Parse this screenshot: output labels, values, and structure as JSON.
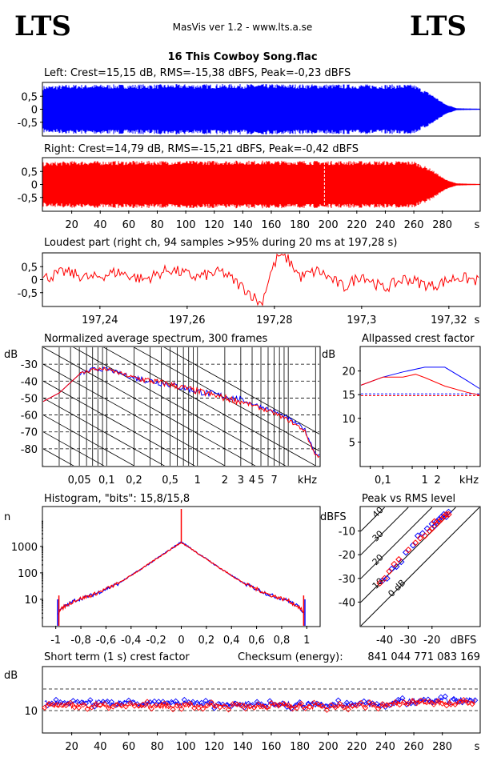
{
  "header": {
    "logo_left": "LTS",
    "logo_right": "LTS",
    "app_title": "MasVis ver 1.2 - www.lts.a.se",
    "file_name": "16 This Cowboy Song.flac"
  },
  "colors": {
    "left": "#0000ff",
    "right": "#ff0000",
    "axes": "#000000"
  },
  "chart_data": [
    {
      "id": "left-waveform",
      "type": "area",
      "title": "Left: Crest=15,15 dB, RMS=-15,38 dBFS, Peak=-0,23 dBFS",
      "ylim": [
        -1,
        1
      ],
      "yticks": [
        "0,5",
        "0",
        "-0,5"
      ],
      "xlim": [
        0,
        306
      ],
      "series": [
        {
          "envelope": [
            [
              0,
              0.9
            ],
            [
              20,
              0.95
            ],
            [
              150,
              0.97
            ],
            [
              260,
              0.95
            ],
            [
              272,
              0.6
            ],
            [
              282,
              0.2
            ],
            [
              290,
              0.04
            ],
            [
              306,
              0.02
            ]
          ]
        }
      ]
    },
    {
      "id": "right-waveform",
      "type": "area",
      "title": "Right: Crest=14,79 dB, RMS=-15,21 dBFS, Peak=-0,42 dBFS",
      "ylim": [
        -1,
        1
      ],
      "yticks": [
        "0,5",
        "0",
        "-0,5"
      ],
      "xlim": [
        0,
        306
      ],
      "xticks": [
        "20",
        "40",
        "60",
        "80",
        "100",
        "120",
        "140",
        "160",
        "180",
        "200",
        "220",
        "240",
        "260",
        "280"
      ],
      "xunit": "s",
      "marker_time": 197.28,
      "series": [
        {
          "envelope": [
            [
              0,
              0.85
            ],
            [
              20,
              0.9
            ],
            [
              150,
              0.92
            ],
            [
              260,
              0.9
            ],
            [
              272,
              0.6
            ],
            [
              282,
              0.2
            ],
            [
              290,
              0.04
            ],
            [
              306,
              0.02
            ]
          ]
        }
      ]
    },
    {
      "id": "loudest-part",
      "type": "line",
      "title": "Loudest part (right ch, 94 samples >95% during 20 ms at 197,28 s)",
      "ylim": [
        -1,
        1
      ],
      "yticks": [
        "0,5",
        "0",
        "-0,5"
      ],
      "xlim": [
        197.227,
        197.327
      ],
      "xticks": [
        "197,24",
        "197,26",
        "197,28",
        "197,3",
        "197,32"
      ],
      "xunit": "s",
      "series": [
        {
          "name": "right",
          "control_points": [
            [
              197.227,
              0.05
            ],
            [
              197.232,
              0.3
            ],
            [
              197.238,
              0.05
            ],
            [
              197.244,
              0.3
            ],
            [
              197.25,
              0.0
            ],
            [
              197.256,
              0.4
            ],
            [
              197.262,
              0.1
            ],
            [
              197.268,
              0.3
            ],
            [
              197.274,
              -0.45
            ],
            [
              197.277,
              -0.95
            ],
            [
              197.279,
              0.2
            ],
            [
              197.281,
              0.95
            ],
            [
              197.283,
              0.8
            ],
            [
              197.286,
              0.1
            ],
            [
              197.29,
              0.35
            ],
            [
              197.296,
              -0.3
            ],
            [
              197.3,
              0.2
            ],
            [
              197.305,
              -0.35
            ],
            [
              197.31,
              0.05
            ],
            [
              197.316,
              -0.25
            ],
            [
              197.322,
              0.1
            ],
            [
              197.327,
              -0.05
            ]
          ]
        }
      ]
    },
    {
      "id": "spectrum",
      "type": "line",
      "title": "Normalized average spectrum, 300 frames",
      "ylabel": "dB",
      "xunit": "kHz",
      "xscale": "log",
      "xlim": [
        0.02,
        22
      ],
      "ylim": [
        -90,
        -20
      ],
      "yticks": [
        "-30",
        "-40",
        "-50",
        "-60",
        "-70",
        "-80"
      ],
      "xticks": [
        "0,05",
        "0,1",
        "0,2",
        "0,5",
        "1",
        "2",
        "3",
        "4",
        "5",
        "7"
      ],
      "series": [
        {
          "name": "left",
          "points": [
            [
              0.02,
              -52
            ],
            [
              0.03,
              -47
            ],
            [
              0.05,
              -36
            ],
            [
              0.07,
              -33
            ],
            [
              0.1,
              -33
            ],
            [
              0.2,
              -38
            ],
            [
              0.5,
              -42
            ],
            [
              1,
              -46
            ],
            [
              2,
              -49
            ],
            [
              3,
              -51
            ],
            [
              5,
              -55
            ],
            [
              7,
              -58
            ],
            [
              10,
              -62
            ],
            [
              15,
              -68
            ],
            [
              20,
              -83
            ]
          ]
        },
        {
          "name": "right",
          "points": [
            [
              0.02,
              -52
            ],
            [
              0.03,
              -47
            ],
            [
              0.05,
              -36
            ],
            [
              0.07,
              -33
            ],
            [
              0.1,
              -33
            ],
            [
              0.2,
              -38
            ],
            [
              0.5,
              -42
            ],
            [
              1,
              -46
            ],
            [
              2,
              -50
            ],
            [
              3,
              -52
            ],
            [
              5,
              -56
            ],
            [
              7,
              -59
            ],
            [
              10,
              -63
            ],
            [
              15,
              -69
            ],
            [
              20,
              -84
            ]
          ]
        }
      ]
    },
    {
      "id": "allpass-crest",
      "type": "line",
      "title": "Allpassed crest factor",
      "ylabel": "dB",
      "xunit": "kHz",
      "xscale": "log",
      "xlim": [
        0.03,
        20
      ],
      "ylim": [
        0,
        25
      ],
      "yticks": [
        "20",
        "15",
        "10",
        "5"
      ],
      "xticks": [
        "0,1",
        "1",
        "2"
      ],
      "series": [
        {
          "name": "left",
          "points": [
            [
              0.03,
              17
            ],
            [
              0.1,
              18.7
            ],
            [
              0.3,
              19.8
            ],
            [
              1,
              20.8
            ],
            [
              3,
              20.8
            ],
            [
              10,
              18.0
            ],
            [
              20,
              16.3
            ]
          ]
        },
        {
          "name": "right",
          "points": [
            [
              0.03,
              17
            ],
            [
              0.1,
              18.7
            ],
            [
              0.3,
              18.7
            ],
            [
              0.6,
              19.3
            ],
            [
              1,
              18.6
            ],
            [
              3,
              16.8
            ],
            [
              10,
              15.5
            ],
            [
              20,
              14.9
            ]
          ]
        }
      ],
      "reference_levels": {
        "left": 15.15,
        "right": 14.79
      }
    },
    {
      "id": "histogram",
      "type": "line",
      "title": "Histogram, \"bits\": 15,8/15,8",
      "ylabel": "n",
      "yscale": "log",
      "xlim": [
        -1.1,
        1.1
      ],
      "yticks": [
        "1000",
        "100",
        "10"
      ],
      "xticks": [
        "-1",
        "-0,8",
        "-0,6",
        "-0,4",
        "-0,2",
        "0",
        "0,2",
        "0,4",
        "0,6",
        "0,8",
        "1"
      ],
      "series": [
        {
          "name": "left",
          "points": [
            [
              -0.98,
              3
            ],
            [
              -0.94,
              5
            ],
            [
              -0.85,
              9
            ],
            [
              -0.7,
              15
            ],
            [
              -0.5,
              40
            ],
            [
              -0.3,
              160
            ],
            [
              -0.1,
              700
            ],
            [
              0,
              1500
            ],
            [
              0.1,
              700
            ],
            [
              0.3,
              160
            ],
            [
              0.5,
              40
            ],
            [
              0.7,
              15
            ],
            [
              0.85,
              9
            ],
            [
              0.94,
              5
            ],
            [
              0.98,
              3
            ]
          ]
        },
        {
          "name": "right",
          "points": [
            [
              -0.98,
              3
            ],
            [
              -0.94,
              5
            ],
            [
              -0.85,
              9
            ],
            [
              -0.7,
              15
            ],
            [
              -0.5,
              40
            ],
            [
              -0.3,
              160
            ],
            [
              -0.1,
              700
            ],
            [
              0,
              1400
            ],
            [
              0.1,
              700
            ],
            [
              0.3,
              160
            ],
            [
              0.5,
              40
            ],
            [
              0.7,
              15
            ],
            [
              0.85,
              9
            ],
            [
              0.94,
              5
            ],
            [
              0.98,
              3
            ]
          ]
        }
      ]
    },
    {
      "id": "peak-vs-rms",
      "type": "scatter",
      "title": "Peak vs RMS level",
      "ylabel": "dBFS",
      "xunit": "dBFS",
      "xlim": [
        -50,
        0
      ],
      "ylim": [
        -50,
        0
      ],
      "yticks": [
        "-10",
        "-20",
        "-30",
        "-40"
      ],
      "xticks": [
        "-40",
        "-30",
        "-20"
      ],
      "crest_lines": [
        "0 dB",
        "10",
        "20",
        "30",
        "40"
      ],
      "series": [
        {
          "name": "left",
          "points": [
            [
              -41,
              -31
            ],
            [
              -39,
              -30
            ],
            [
              -37,
              -26
            ],
            [
              -35,
              -25
            ],
            [
              -33,
              -23
            ],
            [
              -31,
              -19
            ],
            [
              -28,
              -16
            ],
            [
              -26,
              -12
            ],
            [
              -24,
              -11
            ],
            [
              -22,
              -9
            ],
            [
              -20,
              -7
            ],
            [
              -19,
              -8
            ],
            [
              -18,
              -6
            ],
            [
              -17,
              -5
            ],
            [
              -16,
              -4
            ],
            [
              -15,
              -3
            ],
            [
              -14,
              -4
            ],
            [
              -13,
              -2
            ]
          ]
        },
        {
          "name": "right",
          "points": [
            [
              -42,
              -32
            ],
            [
              -40,
              -30
            ],
            [
              -38,
              -27
            ],
            [
              -36,
              -24
            ],
            [
              -34,
              -22
            ],
            [
              -30,
              -18
            ],
            [
              -27,
              -15
            ],
            [
              -25,
              -13
            ],
            [
              -23,
              -12
            ],
            [
              -21,
              -10
            ],
            [
              -20,
              -9
            ],
            [
              -19,
              -6
            ],
            [
              -18,
              -7
            ],
            [
              -17,
              -6
            ],
            [
              -16,
              -5
            ],
            [
              -15,
              -4
            ],
            [
              -14,
              -3
            ],
            [
              -13,
              -3
            ]
          ]
        }
      ]
    },
    {
      "id": "short-term-crest",
      "type": "scatter",
      "title": "Short term (1 s) crest factor",
      "checksum_label": "Checksum (energy):",
      "checksum_value": "841 044 771 083 169",
      "ylabel": "dB",
      "xunit": "s",
      "xlim": [
        0,
        306
      ],
      "ylim": [
        0,
        30
      ],
      "yticks": [
        "10"
      ],
      "xticks": [
        "20",
        "40",
        "60",
        "80",
        "100",
        "120",
        "140",
        "160",
        "180",
        "200",
        "220",
        "240",
        "260",
        "280"
      ],
      "series": [
        {
          "name": "left",
          "segments": [
            [
              0,
              13.5
            ],
            [
              100,
              13.2
            ],
            [
              180,
              12.8
            ],
            [
              240,
              13.0
            ],
            [
              250,
              14.2
            ],
            [
              306,
              15.0
            ]
          ]
        },
        {
          "name": "right",
          "segments": [
            [
              0,
              12.5
            ],
            [
              100,
              12.3
            ],
            [
              180,
              12.0
            ],
            [
              240,
              12.3
            ],
            [
              250,
              13.5
            ],
            [
              306,
              14.2
            ]
          ]
        }
      ]
    }
  ]
}
